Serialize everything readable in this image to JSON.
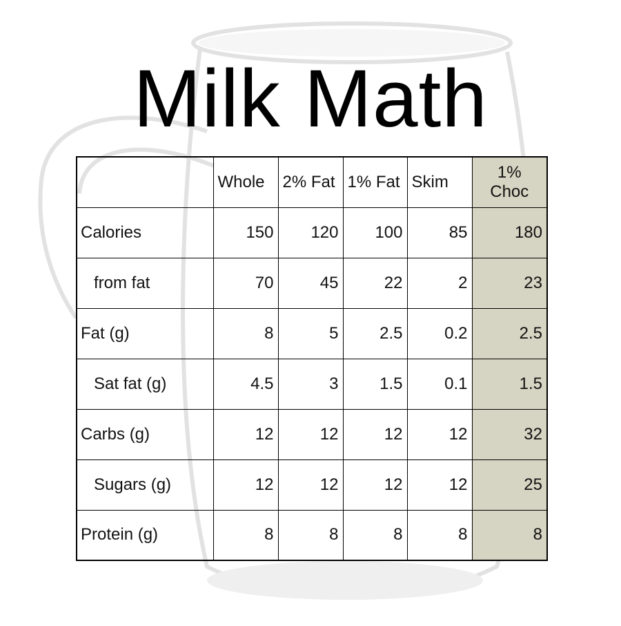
{
  "title": "Milk Math",
  "colors": {
    "highlight_column": "#d6d4c2"
  },
  "table": {
    "columns": [
      "",
      "Whole",
      "2% Fat",
      "1% Fat",
      "Skim",
      "1% Choc"
    ],
    "rows": [
      {
        "label": "Calories",
        "indent": false,
        "values": [
          "150",
          "120",
          "100",
          "85",
          "180"
        ]
      },
      {
        "label": "from fat",
        "indent": true,
        "values": [
          "70",
          "45",
          "22",
          "2",
          "23"
        ]
      },
      {
        "label": "Fat (g)",
        "indent": false,
        "values": [
          "8",
          "5",
          "2.5",
          "0.2",
          "2.5"
        ]
      },
      {
        "label": "Sat fat (g)",
        "indent": true,
        "values": [
          "4.5",
          "3",
          "1.5",
          "0.1",
          "1.5"
        ]
      },
      {
        "label": "Carbs (g)",
        "indent": false,
        "values": [
          "12",
          "12",
          "12",
          "12",
          "32"
        ]
      },
      {
        "label": "Sugars (g)",
        "indent": true,
        "values": [
          "12",
          "12",
          "12",
          "12",
          "25"
        ]
      },
      {
        "label": "Protein (g)",
        "indent": false,
        "values": [
          "8",
          "8",
          "8",
          "8",
          "8"
        ]
      }
    ]
  }
}
